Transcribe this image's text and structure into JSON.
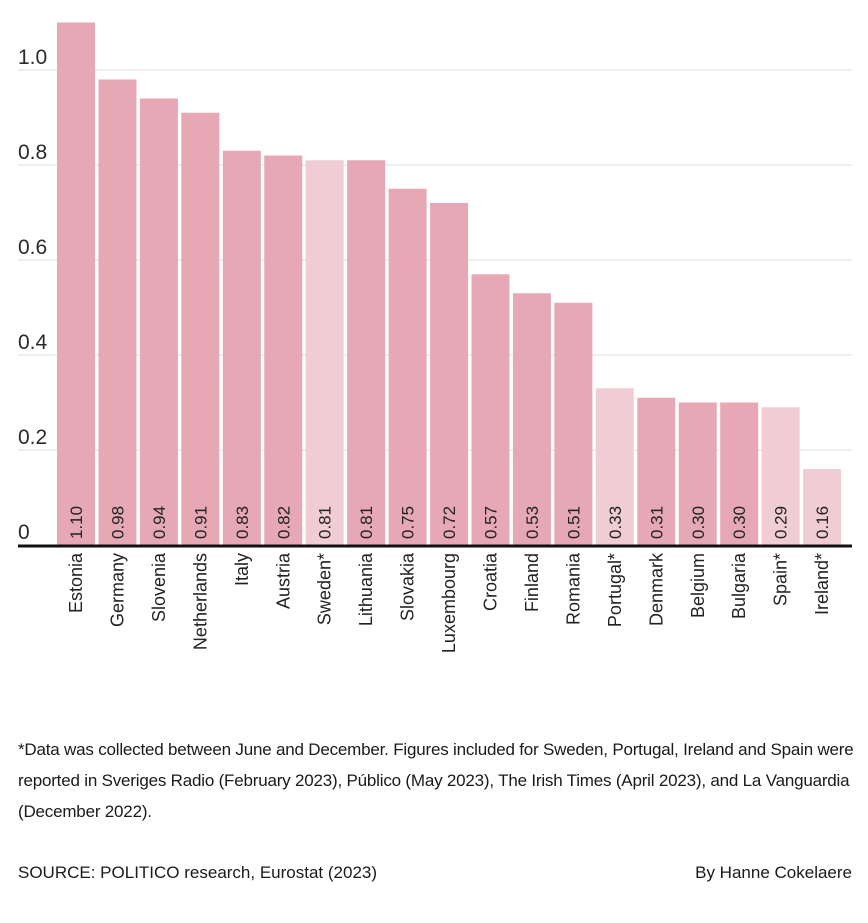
{
  "chart_data": {
    "type": "bar",
    "title": "",
    "xlabel": "",
    "ylabel": "",
    "ylim": [
      0,
      1.1
    ],
    "yticks": [
      0,
      0.2,
      0.4,
      0.6,
      0.8,
      1.0
    ],
    "ytick_labels": [
      "0",
      "0.2",
      "0.4",
      "0.6",
      "0.8",
      "1.0"
    ],
    "grid": true,
    "categories": [
      "Estonia",
      "Germany",
      "Slovenia",
      "Netherlands",
      "Italy",
      "Austria",
      "Sweden*",
      "Lithuania",
      "Slovakia",
      "Luxembourg",
      "Croatia",
      "Finland",
      "Romania",
      "Portugal*",
      "Denmark",
      "Belgium",
      "Bulgaria",
      "Spain*",
      "Ireland*"
    ],
    "values": [
      1.1,
      0.98,
      0.94,
      0.91,
      0.83,
      0.82,
      0.81,
      0.81,
      0.75,
      0.72,
      0.57,
      0.53,
      0.51,
      0.33,
      0.31,
      0.3,
      0.3,
      0.29,
      0.16
    ],
    "value_labels": [
      "1.10",
      "0.98",
      "0.94",
      "0.91",
      "0.83",
      "0.82",
      "0.81",
      "0.81",
      "0.75",
      "0.72",
      "0.57",
      "0.53",
      "0.51",
      "0.33",
      "0.31",
      "0.30",
      "0.30",
      "0.29",
      "0.16"
    ],
    "highlighted_external_source": [
      false,
      false,
      false,
      false,
      false,
      false,
      true,
      false,
      false,
      false,
      false,
      false,
      false,
      true,
      false,
      false,
      false,
      true,
      true
    ],
    "colors": {
      "bar": "#e5a8b4",
      "bar_external": "#f0cdd4",
      "gridline": "#e8e8e8",
      "axis": "#111111"
    }
  },
  "footer": {
    "footnote": "*Data was collected between June and December. Figures included for Sweden, Portugal, Ireland and Spain were reported in Sveriges Radio (February 2023), Público (May 2023), The Irish Times (April 2023), and La Vanguardia (December 2022).",
    "source": "SOURCE: POLITICO research, Eurostat (2023)",
    "byline": "By Hanne Cokelaere"
  }
}
